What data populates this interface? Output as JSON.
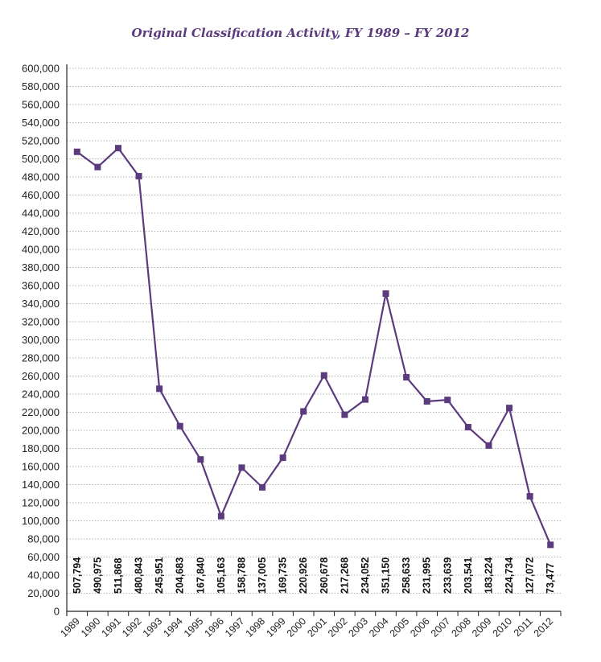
{
  "chart_data": {
    "type": "line",
    "title": "Original Classification Activity, FY 1989 – FY 2012",
    "xlabel": "",
    "ylabel": "",
    "ylim": [
      0,
      600000
    ],
    "ytick_step": 20000,
    "grid": true,
    "categories": [
      "1989",
      "1990",
      "1991",
      "1992",
      "1993",
      "1994",
      "1995",
      "1996",
      "1997",
      "1998",
      "1999",
      "2000",
      "2001",
      "2002",
      "2003",
      "2004",
      "2005",
      "2006",
      "2007",
      "2008",
      "2009",
      "2010",
      "2011",
      "2012"
    ],
    "values": [
      507794,
      490975,
      511868,
      480843,
      245951,
      204683,
      167840,
      105163,
      158788,
      137005,
      169735,
      220926,
      260678,
      217268,
      234052,
      351150,
      258633,
      231995,
      233639,
      203541,
      183224,
      224734,
      127072,
      73477
    ],
    "data_labels": [
      "507,794",
      "490,975",
      "511,868",
      "480,843",
      "245,951",
      "204,683",
      "167,840",
      "105,163",
      "158,788",
      "137,005",
      "169,735",
      "220,926",
      "260,678",
      "217,268",
      "234,052",
      "351,150",
      "258,633",
      "231,995",
      "233,639",
      "203,541",
      "183,224",
      "224,734",
      "127,072",
      "73,477"
    ],
    "colors": {
      "line": "#5b3a7e",
      "title": "#5b3a7e"
    }
  }
}
